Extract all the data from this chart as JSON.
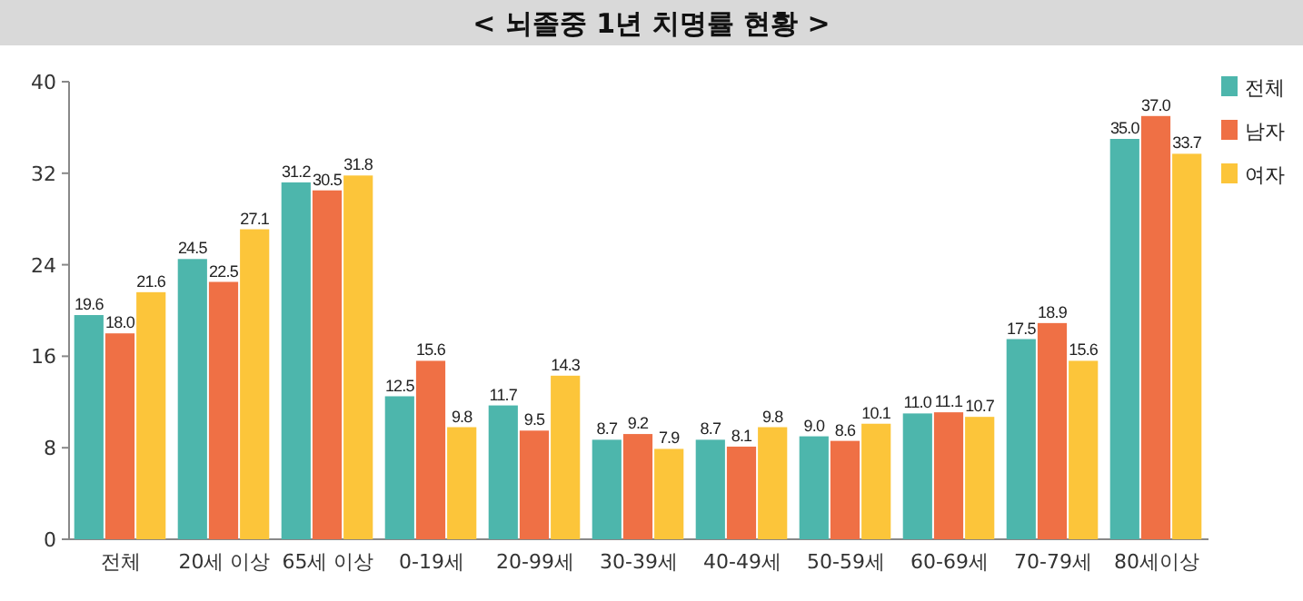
{
  "chart_data": {
    "type": "bar",
    "title": "< 뇌졸중 1년 치명률 현황 >",
    "categories": [
      "전체",
      "20세 이상",
      "65세 이상",
      "0-19세",
      "20-99세",
      "30-39세",
      "40-49세",
      "50-59세",
      "60-69세",
      "70-79세",
      "80세이상"
    ],
    "series": [
      {
        "name": "전체",
        "color": "#4db6ac",
        "values": [
          19.6,
          24.5,
          31.2,
          12.5,
          11.7,
          8.7,
          8.7,
          9.0,
          11.0,
          17.5,
          35.0
        ],
        "value_labels": [
          "19.6",
          "24.5",
          "31.2",
          "12.5",
          "11.7",
          "8.7",
          "8.7",
          "9.0",
          "11.0",
          "17.5",
          "35.0"
        ]
      },
      {
        "name": "남자",
        "color": "#ef7045",
        "values": [
          18.0,
          22.5,
          30.5,
          15.6,
          9.5,
          9.2,
          8.1,
          8.6,
          11.1,
          18.9,
          37.0
        ],
        "value_labels": [
          "18.0",
          "22.5",
          "30.5",
          "15.6",
          "9.5",
          "9.2",
          "8.1",
          "8.6",
          "11.1",
          "18.9",
          "37.0"
        ]
      },
      {
        "name": "여자",
        "color": "#fcc53a",
        "values": [
          21.6,
          27.1,
          31.8,
          9.8,
          14.3,
          7.9,
          9.8,
          10.1,
          10.7,
          15.6,
          33.7
        ],
        "value_labels": [
          "21.6",
          "27.1",
          "31.8",
          "9.8",
          "14.3",
          "7.9",
          "9.8",
          "10.1",
          "10.7",
          "15.6",
          "33.7"
        ]
      }
    ],
    "ylim": [
      0,
      40
    ],
    "yticks": [
      0,
      8,
      16,
      24,
      32,
      40
    ],
    "grid": false,
    "legend": "top right"
  }
}
